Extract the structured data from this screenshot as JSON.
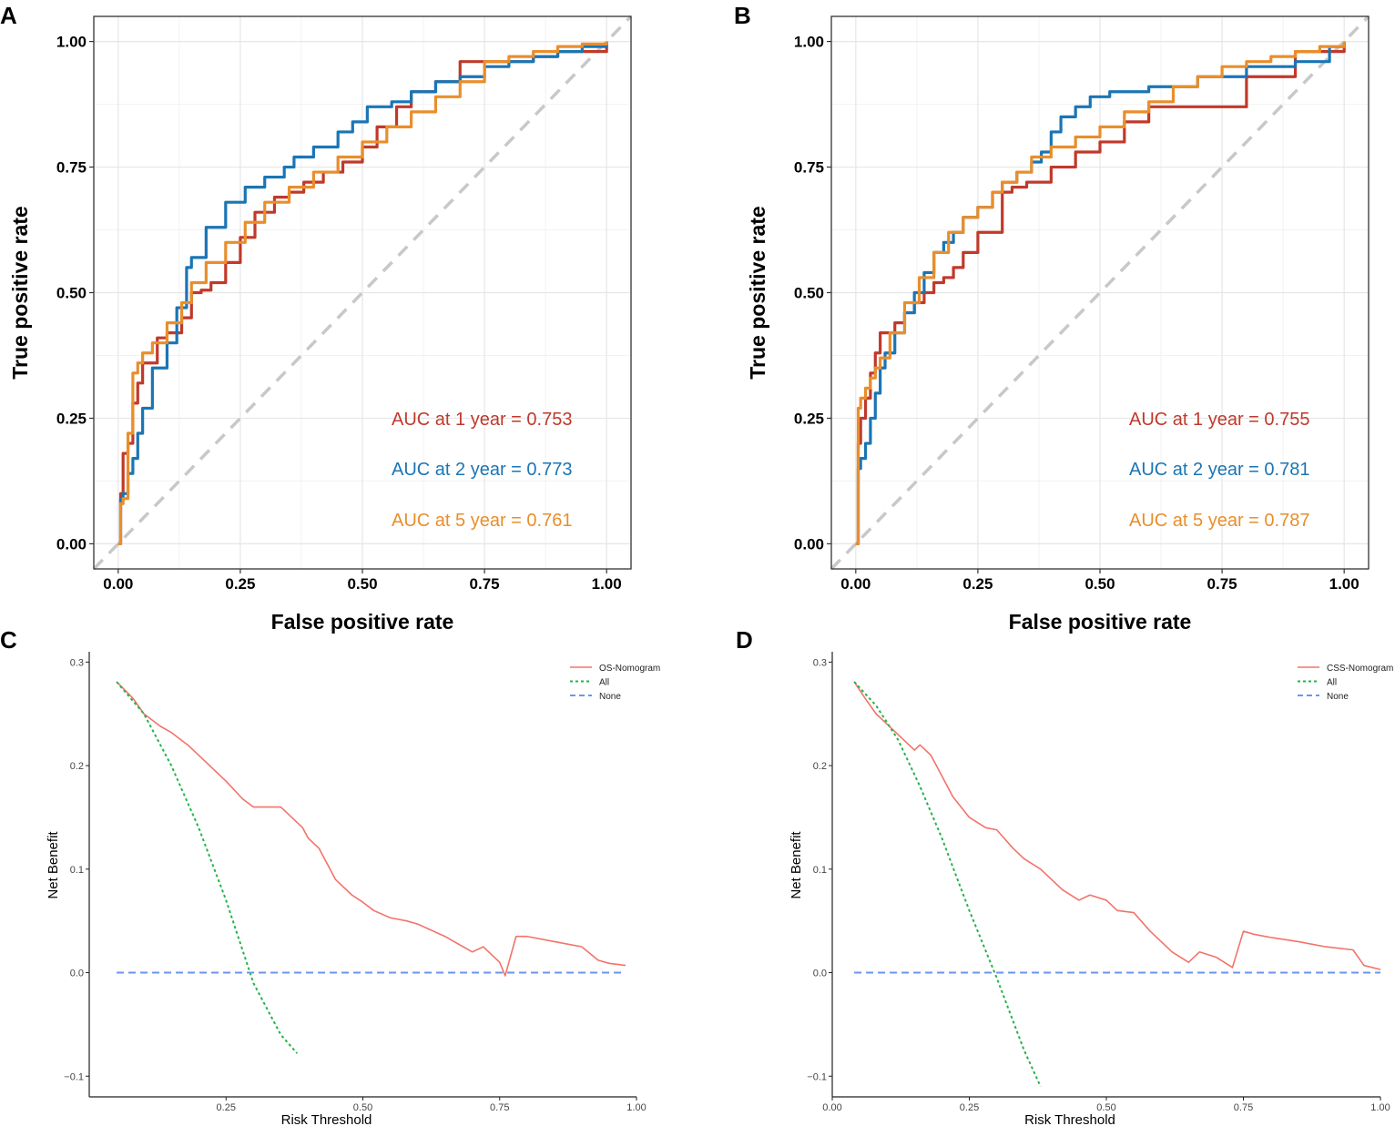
{
  "panels": {
    "A": "A",
    "B": "B",
    "C": "C",
    "D": "D"
  },
  "colors": {
    "red": "#c0392b",
    "blue": "#1a75b5",
    "orange": "#e98e2b",
    "diag": "#c8c8c8",
    "model": "#f2736a",
    "all": "#22b44a",
    "none": "#6a95ef"
  },
  "chart_data": [
    {
      "id": "A",
      "type": "line",
      "title": "",
      "xlabel": "False positive rate",
      "ylabel": "True positive rate",
      "xlim": [
        -0.05,
        1.05
      ],
      "ylim": [
        -0.05,
        1.05
      ],
      "x_ticks": [
        0.0,
        0.25,
        0.5,
        0.75,
        1.0
      ],
      "x_tick_labels": [
        "0.00",
        "0.25",
        "0.50",
        "0.75",
        "1.00"
      ],
      "y_ticks": [
        0.0,
        0.25,
        0.5,
        0.75,
        1.0
      ],
      "y_tick_labels": [
        "0.00",
        "0.25",
        "0.50",
        "0.75",
        "1.00"
      ],
      "annotations": [
        "AUC at 1 year = 0.753",
        "AUC at 2 year = 0.773",
        "AUC at 5 year = 0.761"
      ],
      "series": [
        {
          "name": "AUC at 1 year = 0.753",
          "color": "red",
          "x": [
            0,
            0.005,
            0.01,
            0.02,
            0.03,
            0.04,
            0.05,
            0.06,
            0.08,
            0.1,
            0.13,
            0.15,
            0.17,
            0.19,
            0.22,
            0.25,
            0.28,
            0.32,
            0.35,
            0.38,
            0.42,
            0.46,
            0.5,
            0.53,
            0.57,
            0.6,
            0.65,
            0.7,
            0.75,
            0.8,
            0.85,
            0.9,
            0.95,
            1.0
          ],
          "y": [
            0,
            0.1,
            0.18,
            0.2,
            0.28,
            0.32,
            0.36,
            0.36,
            0.41,
            0.42,
            0.45,
            0.5,
            0.505,
            0.52,
            0.56,
            0.61,
            0.66,
            0.69,
            0.7,
            0.72,
            0.74,
            0.76,
            0.79,
            0.83,
            0.87,
            0.9,
            0.92,
            0.96,
            0.96,
            0.96,
            0.97,
            0.98,
            0.98,
            1.0
          ]
        },
        {
          "name": "AUC at 2 year = 0.773",
          "color": "blue",
          "x": [
            0,
            0.005,
            0.01,
            0.02,
            0.03,
            0.04,
            0.05,
            0.07,
            0.1,
            0.12,
            0.14,
            0.15,
            0.18,
            0.22,
            0.26,
            0.3,
            0.34,
            0.36,
            0.4,
            0.45,
            0.48,
            0.51,
            0.56,
            0.6,
            0.65,
            0.7,
            0.75,
            0.8,
            0.85,
            0.9,
            0.95,
            1.0
          ],
          "y": [
            0,
            0.09,
            0.1,
            0.14,
            0.17,
            0.22,
            0.27,
            0.35,
            0.4,
            0.47,
            0.55,
            0.57,
            0.63,
            0.68,
            0.71,
            0.73,
            0.75,
            0.77,
            0.79,
            0.82,
            0.84,
            0.87,
            0.88,
            0.9,
            0.92,
            0.93,
            0.95,
            0.96,
            0.97,
            0.98,
            0.99,
            1.0
          ]
        },
        {
          "name": "AUC at 5 year = 0.761",
          "color": "orange",
          "x": [
            0,
            0.005,
            0.01,
            0.02,
            0.03,
            0.04,
            0.05,
            0.07,
            0.1,
            0.13,
            0.15,
            0.18,
            0.22,
            0.26,
            0.3,
            0.35,
            0.4,
            0.45,
            0.5,
            0.55,
            0.6,
            0.65,
            0.7,
            0.75,
            0.8,
            0.85,
            0.9,
            0.95,
            1.0
          ],
          "y": [
            0,
            0.08,
            0.09,
            0.22,
            0.34,
            0.36,
            0.38,
            0.4,
            0.44,
            0.48,
            0.52,
            0.56,
            0.6,
            0.64,
            0.68,
            0.71,
            0.74,
            0.77,
            0.8,
            0.83,
            0.86,
            0.89,
            0.92,
            0.96,
            0.97,
            0.98,
            0.99,
            0.995,
            1.0
          ]
        }
      ]
    },
    {
      "id": "B",
      "type": "line",
      "title": "",
      "xlabel": "False positive rate",
      "ylabel": "True positive rate",
      "xlim": [
        -0.05,
        1.05
      ],
      "ylim": [
        -0.05,
        1.05
      ],
      "x_ticks": [
        0.0,
        0.25,
        0.5,
        0.75,
        1.0
      ],
      "x_tick_labels": [
        "0.00",
        "0.25",
        "0.50",
        "0.75",
        "1.00"
      ],
      "y_ticks": [
        0.0,
        0.25,
        0.5,
        0.75,
        1.0
      ],
      "y_tick_labels": [
        "0.00",
        "0.25",
        "0.50",
        "0.75",
        "1.00"
      ],
      "annotations": [
        "AUC at 1 year = 0.755",
        "AUC at 2 year = 0.781",
        "AUC at 5 year = 0.787"
      ],
      "series": [
        {
          "name": "AUC at 1 year = 0.755",
          "color": "red",
          "x": [
            0,
            0.005,
            0.01,
            0.02,
            0.03,
            0.04,
            0.05,
            0.06,
            0.08,
            0.1,
            0.12,
            0.14,
            0.16,
            0.18,
            0.2,
            0.22,
            0.25,
            0.28,
            0.3,
            0.32,
            0.35,
            0.4,
            0.45,
            0.5,
            0.55,
            0.6,
            0.7,
            0.8,
            0.9,
            0.97,
            1.0
          ],
          "y": [
            0,
            0.2,
            0.25,
            0.29,
            0.34,
            0.38,
            0.42,
            0.42,
            0.44,
            0.46,
            0.48,
            0.5,
            0.52,
            0.53,
            0.55,
            0.58,
            0.62,
            0.62,
            0.7,
            0.71,
            0.72,
            0.75,
            0.78,
            0.8,
            0.84,
            0.87,
            0.87,
            0.93,
            0.98,
            0.98,
            1.0
          ]
        },
        {
          "name": "AUC at 2 year = 0.781",
          "color": "blue",
          "x": [
            0,
            0.005,
            0.01,
            0.02,
            0.03,
            0.04,
            0.05,
            0.06,
            0.08,
            0.1,
            0.12,
            0.14,
            0.16,
            0.18,
            0.2,
            0.22,
            0.25,
            0.28,
            0.3,
            0.33,
            0.36,
            0.38,
            0.4,
            0.42,
            0.45,
            0.48,
            0.52,
            0.6,
            0.7,
            0.8,
            0.9,
            0.97,
            1.0
          ],
          "y": [
            0,
            0.15,
            0.17,
            0.2,
            0.25,
            0.3,
            0.35,
            0.38,
            0.42,
            0.46,
            0.5,
            0.54,
            0.58,
            0.6,
            0.62,
            0.65,
            0.67,
            0.7,
            0.72,
            0.74,
            0.76,
            0.78,
            0.82,
            0.85,
            0.87,
            0.89,
            0.9,
            0.91,
            0.93,
            0.95,
            0.96,
            0.99,
            1.0
          ]
        },
        {
          "name": "AUC at 5 year = 0.787",
          "color": "orange",
          "x": [
            0,
            0.005,
            0.01,
            0.02,
            0.03,
            0.04,
            0.05,
            0.07,
            0.1,
            0.13,
            0.16,
            0.19,
            0.22,
            0.25,
            0.28,
            0.3,
            0.33,
            0.36,
            0.4,
            0.45,
            0.5,
            0.55,
            0.6,
            0.65,
            0.7,
            0.75,
            0.8,
            0.85,
            0.9,
            0.95,
            1.0
          ],
          "y": [
            0,
            0.27,
            0.29,
            0.31,
            0.33,
            0.35,
            0.37,
            0.42,
            0.48,
            0.53,
            0.58,
            0.62,
            0.65,
            0.67,
            0.7,
            0.72,
            0.74,
            0.77,
            0.79,
            0.81,
            0.83,
            0.86,
            0.88,
            0.91,
            0.93,
            0.95,
            0.96,
            0.97,
            0.98,
            0.99,
            1.0
          ]
        }
      ]
    },
    {
      "id": "C",
      "type": "line",
      "title": "",
      "xlabel": "Risk Threshold",
      "ylabel": "Net Benefit",
      "xlim": [
        0.0,
        1.0
      ],
      "ylim": [
        -0.12,
        0.31
      ],
      "x_ticks": [
        0.25,
        0.5,
        0.75,
        1.0
      ],
      "x_tick_labels": [
        "0.25",
        "0.50",
        "0.75",
        "1.00"
      ],
      "y_ticks": [
        0.3,
        0.2,
        0.1,
        0.0,
        -0.1
      ],
      "y_tick_labels": [
        "0.3",
        "0.2",
        "0.1",
        "0.0",
        "−0.1"
      ],
      "legend": [
        "OS-Nomogram",
        "All",
        "None"
      ],
      "legend_position": "top-right",
      "series": [
        {
          "name": "OS-Nomogram",
          "color": "model",
          "style": "solid",
          "x": [
            0.05,
            0.08,
            0.1,
            0.13,
            0.15,
            0.18,
            0.2,
            0.22,
            0.25,
            0.28,
            0.3,
            0.33,
            0.35,
            0.37,
            0.39,
            0.4,
            0.42,
            0.45,
            0.48,
            0.5,
            0.52,
            0.55,
            0.58,
            0.6,
            0.65,
            0.7,
            0.72,
            0.75,
            0.76,
            0.78,
            0.8,
            0.85,
            0.9,
            0.93,
            0.95,
            0.98
          ],
          "y": [
            0.281,
            0.265,
            0.25,
            0.238,
            0.232,
            0.22,
            0.21,
            0.2,
            0.185,
            0.168,
            0.16,
            0.16,
            0.16,
            0.15,
            0.14,
            0.13,
            0.12,
            0.09,
            0.075,
            0.068,
            0.06,
            0.053,
            0.05,
            0.047,
            0.035,
            0.02,
            0.025,
            0.01,
            -0.003,
            0.035,
            0.035,
            0.03,
            0.025,
            0.012,
            0.009,
            0.007
          ]
        },
        {
          "name": "All",
          "color": "all",
          "style": "dotted",
          "x": [
            0.05,
            0.1,
            0.15,
            0.2,
            0.25,
            0.3,
            0.35,
            0.38
          ],
          "y": [
            0.281,
            0.25,
            0.2,
            0.14,
            0.07,
            -0.01,
            -0.06,
            -0.078
          ]
        },
        {
          "name": "None",
          "color": "none",
          "style": "dashed",
          "x": [
            0.05,
            0.98
          ],
          "y": [
            0.0,
            0.0
          ]
        }
      ]
    },
    {
      "id": "D",
      "type": "line",
      "title": "",
      "xlabel": "Risk Threshold",
      "ylabel": "Net Benefit",
      "xlim": [
        0.0,
        1.0
      ],
      "ylim": [
        -0.12,
        0.31
      ],
      "x_ticks": [
        0.0,
        0.25,
        0.5,
        0.75,
        1.0
      ],
      "x_tick_labels": [
        "0.00",
        "0.25",
        "0.50",
        "0.75",
        "1.00"
      ],
      "y_ticks": [
        0.3,
        0.2,
        0.1,
        0.0,
        -0.1
      ],
      "y_tick_labels": [
        "0.3",
        "0.2",
        "0.1",
        "0.0",
        "−0.1"
      ],
      "legend": [
        "CSS-Nomogram",
        "All",
        "None"
      ],
      "legend_position": "top-right",
      "series": [
        {
          "name": "CSS-Nomogram",
          "color": "model",
          "style": "solid",
          "x": [
            0.04,
            0.06,
            0.08,
            0.1,
            0.12,
            0.14,
            0.15,
            0.16,
            0.18,
            0.2,
            0.22,
            0.25,
            0.28,
            0.3,
            0.33,
            0.35,
            0.38,
            0.4,
            0.42,
            0.45,
            0.47,
            0.5,
            0.52,
            0.55,
            0.58,
            0.6,
            0.62,
            0.65,
            0.67,
            0.7,
            0.73,
            0.75,
            0.77,
            0.8,
            0.85,
            0.9,
            0.95,
            0.97,
            1.0
          ],
          "y": [
            0.281,
            0.265,
            0.25,
            0.24,
            0.23,
            0.22,
            0.215,
            0.22,
            0.21,
            0.19,
            0.17,
            0.15,
            0.14,
            0.138,
            0.12,
            0.11,
            0.1,
            0.09,
            0.08,
            0.07,
            0.075,
            0.07,
            0.06,
            0.058,
            0.04,
            0.03,
            0.02,
            0.01,
            0.02,
            0.015,
            0.005,
            0.04,
            0.037,
            0.034,
            0.03,
            0.025,
            0.022,
            0.007,
            0.003
          ]
        },
        {
          "name": "All",
          "color": "all",
          "style": "dotted",
          "x": [
            0.04,
            0.08,
            0.12,
            0.16,
            0.2,
            0.25,
            0.3,
            0.35,
            0.38
          ],
          "y": [
            0.281,
            0.258,
            0.225,
            0.18,
            0.13,
            0.06,
            -0.005,
            -0.075,
            -0.11
          ]
        },
        {
          "name": "None",
          "color": "none",
          "style": "dashed",
          "x": [
            0.04,
            1.0
          ],
          "y": [
            0.0,
            0.0
          ]
        }
      ]
    }
  ]
}
